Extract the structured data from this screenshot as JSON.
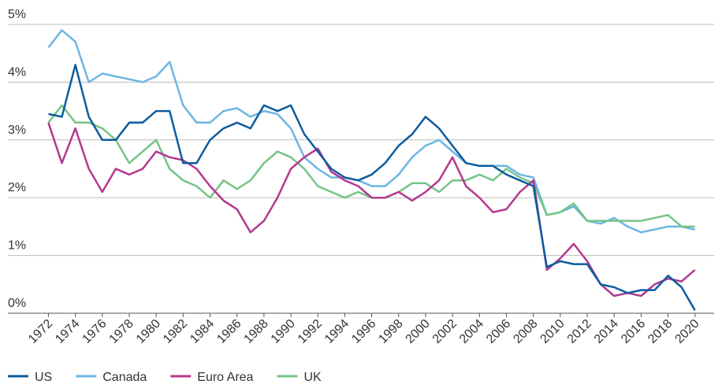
{
  "chart_data": {
    "type": "line",
    "x": [
      1972,
      1973,
      1974,
      1975,
      1976,
      1977,
      1978,
      1979,
      1980,
      1981,
      1982,
      1983,
      1984,
      1985,
      1986,
      1987,
      1988,
      1989,
      1990,
      1991,
      1992,
      1993,
      1994,
      1995,
      1996,
      1997,
      1998,
      1999,
      2000,
      2001,
      2002,
      2003,
      2004,
      2005,
      2006,
      2007,
      2008,
      2009,
      2010,
      2011,
      2012,
      2013,
      2014,
      2015,
      2016,
      2017,
      2018,
      2019,
      2020
    ],
    "series": [
      {
        "name": "US",
        "color": "#0d5c9e",
        "values": [
          3.45,
          3.4,
          4.3,
          3.4,
          3.0,
          3.0,
          3.3,
          3.3,
          3.5,
          3.5,
          2.6,
          2.6,
          3.0,
          3.2,
          3.3,
          3.2,
          3.6,
          3.5,
          3.6,
          3.1,
          2.8,
          2.5,
          2.35,
          2.3,
          2.4,
          2.6,
          2.9,
          3.1,
          3.4,
          3.2,
          2.9,
          2.6,
          2.55,
          2.55,
          2.4,
          2.3,
          2.2,
          0.8,
          0.9,
          0.85,
          0.85,
          0.5,
          0.45,
          0.35,
          0.4,
          0.4,
          0.65,
          0.45,
          0.05
        ]
      },
      {
        "name": "Canada",
        "color": "#6db6e3",
        "values": [
          4.6,
          4.9,
          4.7,
          4.0,
          4.15,
          4.1,
          4.05,
          4.0,
          4.1,
          4.35,
          3.6,
          3.3,
          3.3,
          3.5,
          3.55,
          3.4,
          3.5,
          3.45,
          3.2,
          2.7,
          2.5,
          2.35,
          2.35,
          2.3,
          2.2,
          2.2,
          2.4,
          2.7,
          2.9,
          3.0,
          2.8,
          2.6,
          2.55,
          2.55,
          2.55,
          2.4,
          2.35,
          1.7,
          1.75,
          1.85,
          1.6,
          1.55,
          1.65,
          1.5,
          1.4,
          1.45,
          1.5,
          1.5,
          1.45
        ]
      },
      {
        "name": "Euro Area",
        "color": "#b5388e",
        "values": [
          3.3,
          2.6,
          3.2,
          2.5,
          2.1,
          2.5,
          2.4,
          2.5,
          2.8,
          2.7,
          2.65,
          2.5,
          2.2,
          1.95,
          1.8,
          1.4,
          1.6,
          2.0,
          2.5,
          2.7,
          2.85,
          2.45,
          2.3,
          2.2,
          2.0,
          2.0,
          2.1,
          1.95,
          2.1,
          2.3,
          2.7,
          2.2,
          2.0,
          1.75,
          1.8,
          2.1,
          2.3,
          0.75,
          0.95,
          1.2,
          0.9,
          0.5,
          0.3,
          0.35,
          0.3,
          0.5,
          0.6,
          0.55,
          0.75
        ]
      },
      {
        "name": "UK",
        "color": "#76c488",
        "values": [
          3.3,
          3.6,
          3.3,
          3.3,
          3.2,
          3.0,
          2.6,
          2.8,
          3.0,
          2.5,
          2.3,
          2.2,
          2.0,
          2.3,
          2.15,
          2.3,
          2.6,
          2.8,
          2.7,
          2.5,
          2.2,
          2.1,
          2.0,
          2.1,
          2.0,
          2.0,
          2.1,
          2.25,
          2.25,
          2.1,
          2.3,
          2.3,
          2.4,
          2.3,
          2.5,
          2.35,
          2.25,
          1.7,
          1.75,
          1.9,
          1.6,
          1.6,
          1.6,
          1.6,
          1.6,
          1.65,
          1.7,
          1.5,
          1.5
        ]
      }
    ],
    "xlim": [
      1971.8,
      2020.6
    ],
    "xticks": [
      1972,
      1974,
      1976,
      1978,
      1980,
      1982,
      1984,
      1986,
      1988,
      1990,
      1992,
      1994,
      1996,
      1998,
      2000,
      2002,
      2004,
      2006,
      2008,
      2010,
      2012,
      2014,
      2016,
      2018,
      2020
    ],
    "ylim": [
      0,
      5
    ],
    "yticks": [
      {
        "value": 0,
        "label": "0%"
      },
      {
        "value": 1,
        "label": "1%"
      },
      {
        "value": 2,
        "label": "2%"
      },
      {
        "value": 3,
        "label": "3%"
      },
      {
        "value": 4,
        "label": "4%"
      },
      {
        "value": 5,
        "label": "5%"
      }
    ],
    "grid": true
  }
}
